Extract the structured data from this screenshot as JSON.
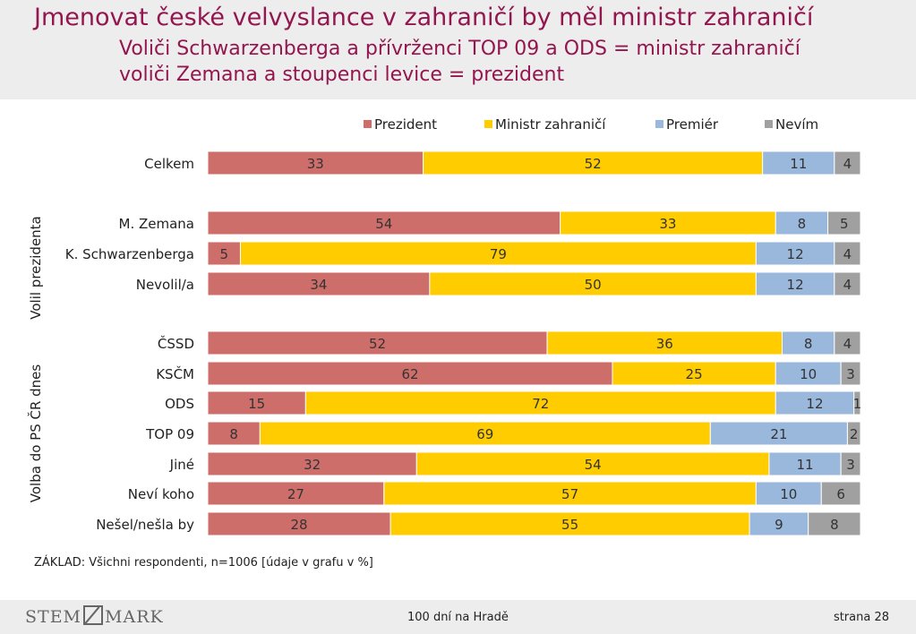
{
  "title": "Jmenovat české velvyslance v zahraničí by měl ministr zahraničí",
  "subtitle_lines": [
    "Voliči Schwarzenberga a přívrženci TOP 09 a ODS = ministr zahraničí",
    "voliči Zemana a stoupenci levice = prezident"
  ],
  "chart_data": {
    "type": "bar",
    "orientation": "horizontal",
    "stacked": "100%",
    "categories": [
      "Celkem",
      "M. Zemana",
      "K. Schwarzenberga",
      "Nevolil/a",
      "ČSSD",
      "KSČM",
      "ODS",
      "TOP 09",
      "Jiné",
      "Neví koho",
      "Nešel/nešla by"
    ],
    "groups": [
      {
        "label": "",
        "categories": [
          "Celkem"
        ]
      },
      {
        "label": "Volil prezidenta",
        "categories": [
          "M. Zemana",
          "K. Schwarzenberga",
          "Nevolil/a"
        ]
      },
      {
        "label": "Volba do  PS ČR dnes",
        "categories": [
          "ČSSD",
          "KSČM",
          "ODS",
          "TOP 09",
          "Jiné",
          "Neví koho",
          "Nešel/nešla by"
        ]
      }
    ],
    "series": [
      {
        "name": "Prezident",
        "color": "#cd6e6a",
        "values": [
          33,
          54,
          5,
          34,
          52,
          62,
          15,
          8,
          32,
          27,
          28
        ]
      },
      {
        "name": "Ministr zahraničí",
        "color": "#ffcc00",
        "values": [
          52,
          33,
          79,
          50,
          36,
          25,
          72,
          69,
          54,
          57,
          55
        ]
      },
      {
        "name": "Premiér",
        "color": "#9ab7dc",
        "values": [
          11,
          8,
          12,
          12,
          8,
          10,
          12,
          21,
          11,
          10,
          9
        ]
      },
      {
        "name": "Nevím",
        "color": "#a0a0a0",
        "values": [
          4,
          5,
          4,
          4,
          4,
          3,
          1,
          2,
          3,
          6,
          8
        ]
      }
    ],
    "xlim": [
      0,
      100
    ],
    "legend_position": "top",
    "note": "ZÁKLAD: Všichni respondenti, n=1006 [údaje v grafu v %]"
  },
  "footer": {
    "logo_left": "STEM",
    "logo_right": "MARK",
    "center": "100 dní na Hradě",
    "page": "strana 28"
  }
}
